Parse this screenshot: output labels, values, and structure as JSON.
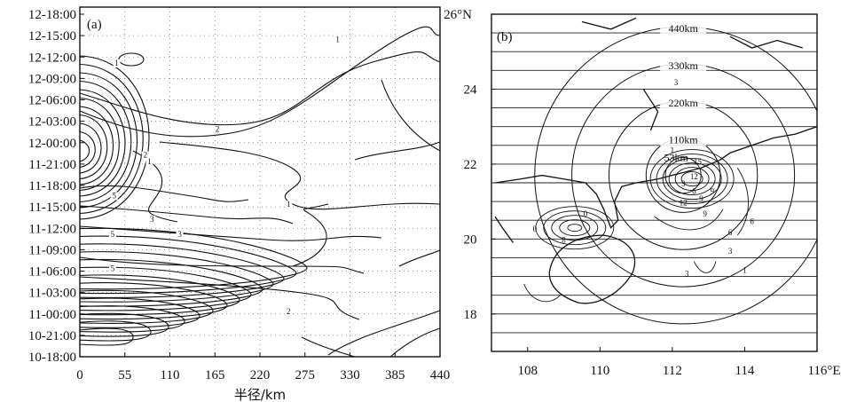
{
  "chart_data": [
    {
      "id": "a",
      "type": "contour",
      "panel_label": "(a)",
      "xlabel": "半径/km",
      "ylabel": "",
      "title": "",
      "x_ticks": [
        "0",
        "55",
        "110",
        "165",
        "220",
        "275",
        "330",
        "385",
        "440"
      ],
      "xlim": [
        0,
        440
      ],
      "y_ticks": [
        "10-18:00",
        "10-21:00",
        "11-00:00",
        "11-03:00",
        "11-06:00",
        "11-09:00",
        "11-12:00",
        "11-15:00",
        "11-18:00",
        "11-21:00",
        "12-00:00",
        "12-03:00",
        "12-06:00",
        "12-09:00",
        "12-12:00",
        "12-15:00",
        "12-18:00"
      ],
      "grid": "dotted",
      "contour_labels": [
        {
          "text": "1",
          "x": 315,
          "y_index": 14.7
        },
        {
          "text": "1",
          "x": 45,
          "y_index": 13.6
        },
        {
          "text": "1",
          "x": 85,
          "y_index": 9.0
        },
        {
          "text": "2",
          "x": 168,
          "y_index": 10.5
        },
        {
          "text": "2",
          "x": 80,
          "y_index": 9.3
        },
        {
          "text": "5",
          "x": 42,
          "y_index": 7.4
        },
        {
          "text": "3",
          "x": 88,
          "y_index": 6.3
        },
        {
          "text": "3",
          "x": 122,
          "y_index": 5.6
        },
        {
          "text": "5",
          "x": 40,
          "y_index": 5.6
        },
        {
          "text": "1",
          "x": 255,
          "y_index": 7.0
        },
        {
          "text": "5",
          "x": 40,
          "y_index": 4.0
        },
        {
          "text": "2",
          "x": 255,
          "y_index": 2.0
        }
      ]
    },
    {
      "id": "b",
      "type": "contour-map",
      "panel_label": "(b)",
      "x_ticks": [
        "108",
        "110",
        "112",
        "114",
        "116°E"
      ],
      "xlim": [
        107,
        116
      ],
      "y_ticks": [
        "18",
        "20",
        "22",
        "24",
        "26°N"
      ],
      "ylim": [
        17,
        26
      ],
      "center": [
        112.3,
        21.7
      ],
      "range_rings": [
        "110km",
        "220km",
        "330km",
        "440km"
      ],
      "range_ring_label_extra": "53km",
      "contour_labels": [
        "1",
        "3",
        "6",
        "9",
        "12",
        "8",
        "0",
        "0",
        "3",
        "6",
        "9",
        "12",
        "15",
        "9",
        "6",
        "3",
        "1",
        "3"
      ]
    }
  ]
}
